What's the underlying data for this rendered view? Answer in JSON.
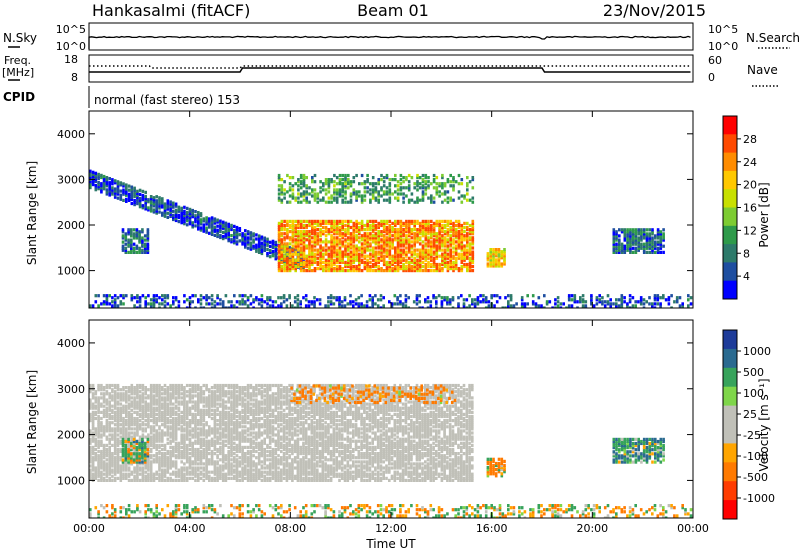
{
  "header": {
    "station": "Hankasalmi (fitACF)",
    "beam": "Beam 01",
    "date": "23/Nov/2015"
  },
  "panels": {
    "nsky": {
      "label": "N.Sky",
      "right_label": "N.Search",
      "left_ticks": [
        "10^5",
        "10^0"
      ],
      "right_ticks": [
        "10^5",
        "10^0"
      ]
    },
    "freq": {
      "label_top": "Freq.",
      "label_unit": "[MHz]",
      "right_label": "Nave",
      "left_ticks": [
        "18",
        "8"
      ],
      "right_ticks": [
        "60",
        "0"
      ]
    },
    "cpid": {
      "label": "CPID",
      "mode_text": "normal (fast stereo) 153"
    }
  },
  "colorbars": {
    "power": {
      "title": "Power [dB]",
      "ticks": [
        "28",
        "24",
        "20",
        "16",
        "12",
        "8",
        "4"
      ],
      "colors": [
        "#ff0000",
        "#ff4a00",
        "#ff8c00",
        "#ffc800",
        "#c8e000",
        "#7dcc32",
        "#2e9a4a",
        "#2d7a6a",
        "#1e4ea0",
        "#0000ff"
      ]
    },
    "velocity": {
      "title": "Velocity [m s⁻¹]",
      "ticks": [
        "1000",
        "500",
        "100",
        "25",
        "-25",
        "-100",
        "-500",
        "-1000"
      ],
      "colors": [
        "#1e3c9a",
        "#2a6a90",
        "#37a35b",
        "#7fd64a",
        "#c0c0b8",
        "#c0c0b8",
        "#ffa500",
        "#ff7a00",
        "#ff3c00",
        "#ff0000"
      ]
    }
  },
  "chart_data": {
    "type": "heatmap",
    "xlabel": "Time UT",
    "ylabel": "Slant Range [km]",
    "x_ticks": [
      "00:00",
      "04:00",
      "08:00",
      "12:00",
      "16:00",
      "20:00",
      "00:00"
    ],
    "y_ticks": [
      "1000",
      "2000",
      "3000",
      "4000"
    ],
    "xlim_hours": [
      0,
      24
    ],
    "ylim_km": [
      180,
      4500
    ],
    "nsky": {
      "level": "~10^3 (near-constant)"
    },
    "nave_step_times_hours": [
      6,
      18
    ],
    "freq_dip_hours": [
      2.5,
      6
    ],
    "power_regions": [
      {
        "name": "dawn-arc",
        "t_start": 0,
        "t_end": 8.5,
        "range_start": 3000,
        "range_end": 1200,
        "power_db": 6
      },
      {
        "name": "main-band",
        "t_start": 7.5,
        "t_end": 15.2,
        "range_low": 1000,
        "range_high": 2100,
        "power_db": 22
      },
      {
        "name": "upper-band",
        "t_start": 7.5,
        "t_end": 15.2,
        "range_low": 2500,
        "range_high": 3100,
        "power_db": 12
      },
      {
        "name": "patch-16h",
        "t_start": 15.8,
        "t_end": 16.5,
        "range_low": 1100,
        "range_high": 1500,
        "power_db": 20
      },
      {
        "name": "patch-2h",
        "t_start": 1.3,
        "t_end": 2.3,
        "range_low": 1400,
        "range_high": 1900,
        "power_db": 8
      },
      {
        "name": "patch-21h",
        "t_start": 20.8,
        "t_end": 22.8,
        "range_low": 1400,
        "range_high": 1900,
        "power_db": 8
      },
      {
        "name": "near-range-clutter",
        "t_start": 0,
        "t_end": 24,
        "range_low": 180,
        "range_high": 450,
        "power_db": 6
      }
    ],
    "velocity_regions": [
      {
        "name": "ground-scatter",
        "t_start": 0,
        "t_end": 15.2,
        "range_low": 1000,
        "range_high": 3100,
        "velocity_ms": 0
      },
      {
        "name": "upper-band",
        "t_start": 8,
        "t_end": 14.5,
        "range_low": 2700,
        "range_high": 3100,
        "velocity_ms": -200
      },
      {
        "name": "patch-2h",
        "t_start": 1.3,
        "t_end": 2.3,
        "range_low": 1400,
        "range_high": 1900,
        "velocity_ms": 80
      },
      {
        "name": "patch-16h",
        "t_start": 15.8,
        "t_end": 16.5,
        "range_low": 1100,
        "range_high": 1500,
        "velocity_ms": -150
      },
      {
        "name": "patch-21h",
        "t_start": 20.8,
        "t_end": 22.8,
        "range_low": 1400,
        "range_high": 1900,
        "velocity_ms": 200
      }
    ]
  }
}
